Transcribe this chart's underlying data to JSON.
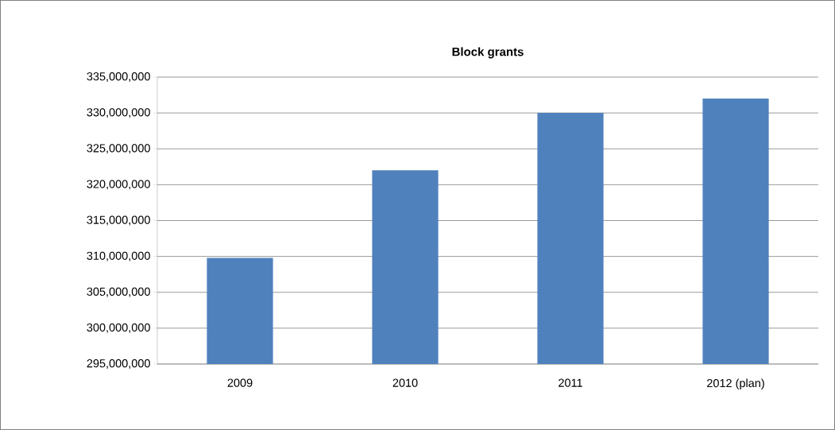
{
  "chart_data": {
    "type": "bar",
    "title": "Block grants",
    "categories": [
      "2009",
      "2010",
      "2011",
      "2012 (plan)"
    ],
    "values": [
      309800000,
      322000000,
      330000000,
      332000000
    ],
    "color": "#4f81bd",
    "ylim": [
      295000000,
      335000000
    ],
    "yticks": [
      {
        "value": 295000000,
        "label": "295,000,000"
      },
      {
        "value": 300000000,
        "label": "300,000,000"
      },
      {
        "value": 305000000,
        "label": "305,000,000"
      },
      {
        "value": 310000000,
        "label": "310,000,000"
      },
      {
        "value": 315000000,
        "label": "315,000,000"
      },
      {
        "value": 320000000,
        "label": "320,000,000"
      },
      {
        "value": 325000000,
        "label": "325,000,000"
      },
      {
        "value": 330000000,
        "label": "330,000,000"
      },
      {
        "value": 335000000,
        "label": "335,000,000"
      }
    ],
    "grid": "y"
  }
}
